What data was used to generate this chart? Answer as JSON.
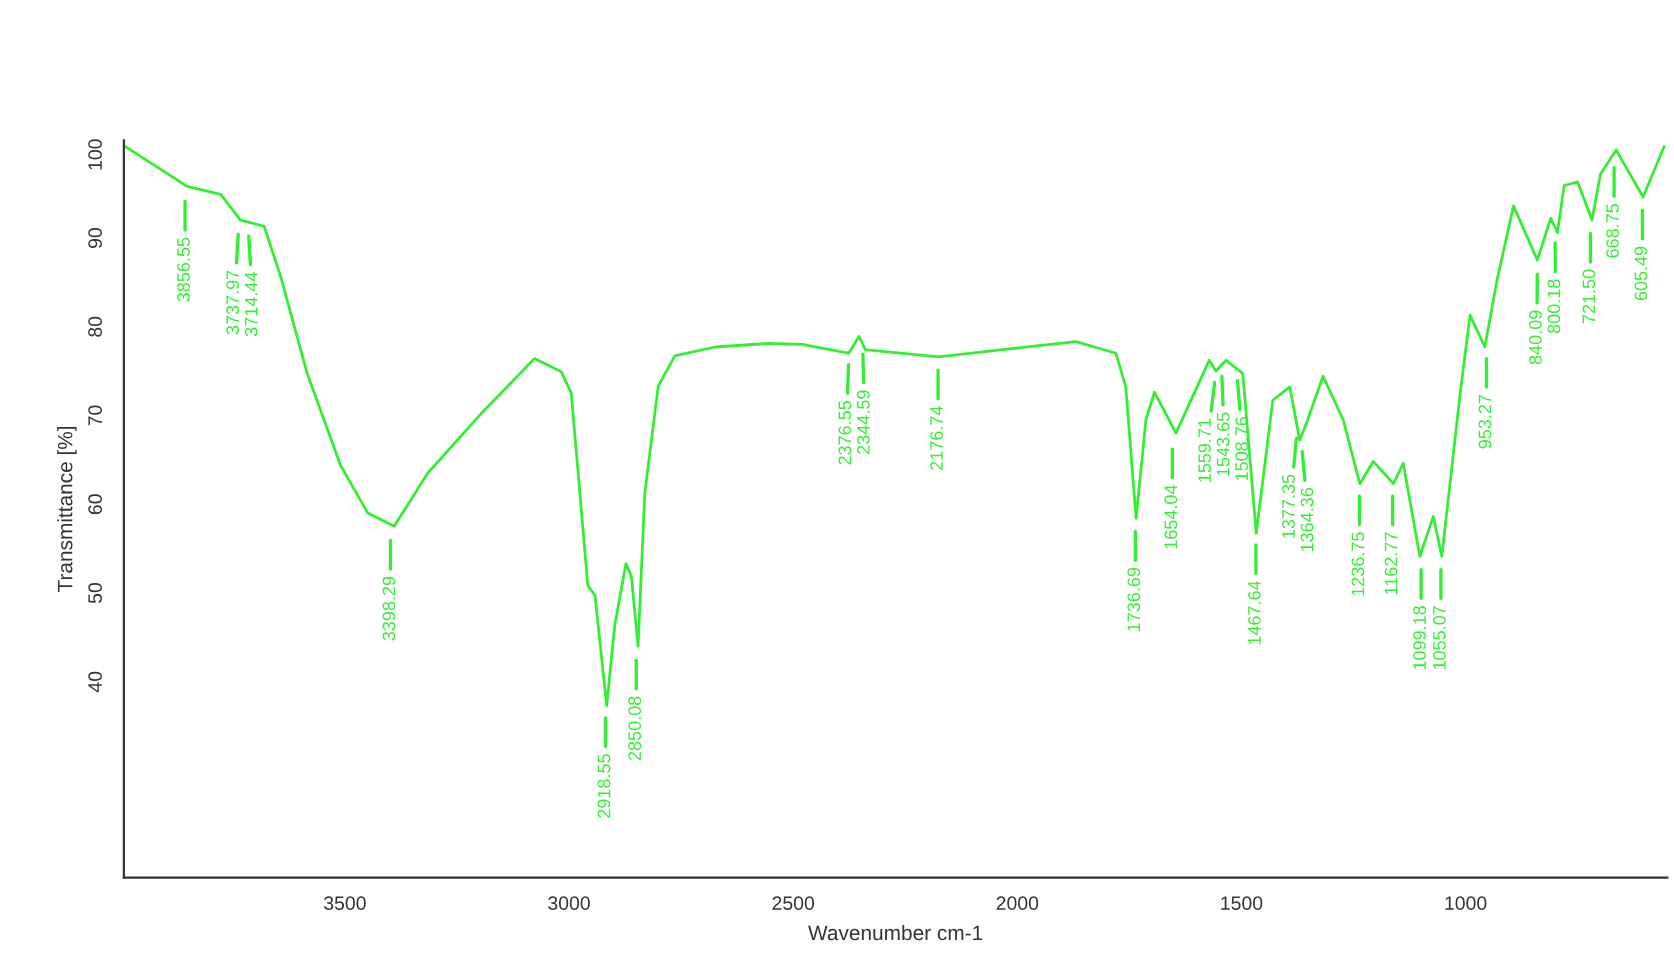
{
  "chart_data": {
    "type": "line",
    "xlabel": "Wavenumber cm-1",
    "ylabel": "Transmittance [%]",
    "xlim": [
      3993,
      550
    ],
    "ylim": [
      17.5,
      100.6
    ],
    "xticks": [
      3500,
      3000,
      2500,
      2000,
      1500,
      1000
    ],
    "yticks": [
      40,
      50,
      60,
      70,
      80,
      90,
      100
    ],
    "grid": false,
    "legend": false,
    "marker": "none",
    "line_style": "solid",
    "series": [
      {
        "color": "#33ee33",
        "x": [
          3993,
          3852,
          3777,
          3733,
          3680,
          3643,
          3584,
          3509,
          3449,
          3390,
          3315,
          3196,
          3077,
          3017,
          2995,
          2958,
          2942,
          2916,
          2898,
          2873,
          2861,
          2846,
          2831,
          2801,
          2764,
          2674,
          2555,
          2480,
          2376,
          2353,
          2339,
          2301,
          2175,
          2033,
          1869,
          1780,
          1758,
          1735,
          1713,
          1694,
          1646,
          1572,
          1557,
          1534,
          1497,
          1467,
          1430,
          1392,
          1370,
          1355,
          1318,
          1273,
          1236,
          1206,
          1161,
          1139,
          1102,
          1072,
          1053,
          1012,
          990,
          957,
          930,
          893,
          840,
          810,
          795,
          780,
          750,
          718,
          699,
          664,
          638,
          604,
          557
        ],
        "values": [
          100,
          95.4,
          94.5,
          91.6,
          90.9,
          85.2,
          74.3,
          63.9,
          58.6,
          57.1,
          63.1,
          69.8,
          76.0,
          74.5,
          72.1,
          50.4,
          49.3,
          36.9,
          45.9,
          52.9,
          51.5,
          43.6,
          60.8,
          72.9,
          76.3,
          77.3,
          77.7,
          77.6,
          76.6,
          78.5,
          77.0,
          76.8,
          76.2,
          77.0,
          77.9,
          76.6,
          72.8,
          58.0,
          69.1,
          72.2,
          67.6,
          75.8,
          74.6,
          75.8,
          74.3,
          56.3,
          71.3,
          72.8,
          66.8,
          68.7,
          74.0,
          69.1,
          61.9,
          64.4,
          61.9,
          64.2,
          53.7,
          58.2,
          53.7,
          72.1,
          80.9,
          77.3,
          84.8,
          93.2,
          87.1,
          91.8,
          90.2,
          95.5,
          95.9,
          91.6,
          96.8,
          99.5,
          97.2,
          94.2,
          99.9
        ]
      }
    ],
    "annotations": [
      {
        "text": "3856.55",
        "x": 3856.55,
        "y": 95.2
      },
      {
        "text": "3737.97",
        "x": 3737.97,
        "y": 91.5
      },
      {
        "text": "3714.44",
        "x": 3714.44,
        "y": 91.3
      },
      {
        "text": "3398.29",
        "x": 3398.29,
        "y": 57
      },
      {
        "text": "2918.55",
        "x": 2918.55,
        "y": 37
      },
      {
        "text": "2850.08",
        "x": 2850.08,
        "y": 43.5
      },
      {
        "text": "2376.55",
        "x": 2376.55,
        "y": 76.8
      },
      {
        "text": "2344.59",
        "x": 2344.59,
        "y": 78
      },
      {
        "text": "2176.74",
        "x": 2176.74,
        "y": 76.2
      },
      {
        "text": "1736.69",
        "x": 1736.69,
        "y": 58
      },
      {
        "text": "1654.04",
        "x": 1654.04,
        "y": 67.3
      },
      {
        "text": "1559.71",
        "x": 1559.71,
        "y": 74.8
      },
      {
        "text": "1543.65",
        "x": 1543.65,
        "y": 75.5
      },
      {
        "text": "1508.76",
        "x": 1508.76,
        "y": 75
      },
      {
        "text": "1467.64",
        "x": 1467.64,
        "y": 56.5
      },
      {
        "text": "1377.35",
        "x": 1377.35,
        "y": 68.5
      },
      {
        "text": "1364.36",
        "x": 1364.36,
        "y": 67
      },
      {
        "text": "1236.75",
        "x": 1236.75,
        "y": 62
      },
      {
        "text": "1162.77",
        "x": 1162.77,
        "y": 62
      },
      {
        "text": "1099.18",
        "x": 1099.18,
        "y": 53.7
      },
      {
        "text": "1055.07",
        "x": 1055.07,
        "y": 53.7
      },
      {
        "text": "953.27",
        "x": 953.27,
        "y": 77.5
      },
      {
        "text": "840.09",
        "x": 840.09,
        "y": 87
      },
      {
        "text": "800.18",
        "x": 800.18,
        "y": 90.5
      },
      {
        "text": "721.50",
        "x": 721.5,
        "y": 91.6
      },
      {
        "text": "668.75",
        "x": 668.75,
        "y": 99
      },
      {
        "text": "605.49",
        "x": 605.49,
        "y": 94.2
      }
    ]
  }
}
